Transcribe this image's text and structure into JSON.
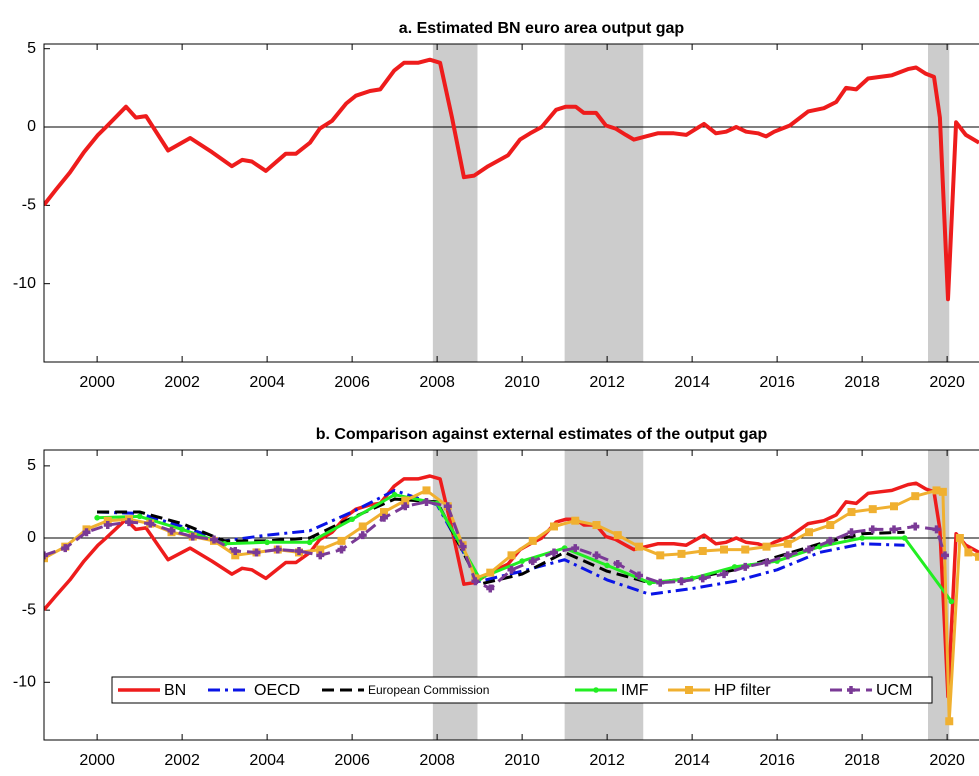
{
  "chart_data": [
    {
      "type": "line",
      "title": "a.  Estimated BN euro area output gap",
      "xlim": [
        1998.75,
        2020.75
      ],
      "ylim": [
        -15,
        5.3
      ],
      "xticks": [
        2000,
        2002,
        2004,
        2006,
        2008,
        2010,
        2012,
        2014,
        2016,
        2018,
        2020
      ],
      "yticks": [
        -10,
        -5,
        0,
        5
      ],
      "zero_line": true,
      "shade_color": "#cccccc",
      "shaded_periods": [
        [
          2007.9,
          2008.95
        ],
        [
          2011.0,
          2012.85
        ],
        [
          2019.55,
          2020.05
        ]
      ],
      "series": [
        {
          "name": "BN",
          "color": "#ee1c1c",
          "width": 4,
          "dash": "solid",
          "x": [
            1998.75,
            1999.03,
            1999.36,
            1999.69,
            2000.02,
            2000.21,
            2000.68,
            2000.91,
            2001.15,
            2001.67,
            2002.19,
            2002.7,
            2003.17,
            2003.41,
            2003.64,
            2003.97,
            2004.44,
            2004.68,
            2005.01,
            2005.24,
            2005.53,
            2005.86,
            2006.09,
            2006.42,
            2006.66,
            2006.99,
            2007.22,
            2007.55,
            2007.83,
            2008.07,
            2008.35,
            2008.63,
            2008.87,
            2009.2,
            2009.67,
            2009.95,
            2010.19,
            2010.46,
            2010.8,
            2011.03,
            2011.26,
            2011.45,
            2011.74,
            2011.97,
            2012.2,
            2012.44,
            2012.63,
            2012.91,
            2013.19,
            2013.57,
            2013.86,
            2014.28,
            2014.56,
            2014.8,
            2015.04,
            2015.27,
            2015.55,
            2015.74,
            2015.93,
            2016.3,
            2016.73,
            2017.1,
            2017.39,
            2017.62,
            2017.86,
            2018.14,
            2018.42,
            2018.7,
            2019.08,
            2019.27,
            2019.5,
            2019.69,
            2019.83,
            2020.02,
            2020.21,
            2020.44,
            2020.75
          ],
          "values": [
            -4.97,
            -4,
            -2.9,
            -1.6,
            -0.5,
            0,
            1.3,
            0.6,
            0.7,
            -1.5,
            -0.7,
            -1.6,
            -2.5,
            -2.1,
            -2.2,
            -2.8,
            -1.7,
            -1.7,
            -1,
            -0.1,
            0.4,
            1.5,
            2,
            2.3,
            2.4,
            3.6,
            4.1,
            4.1,
            4.3,
            4.1,
            0.6,
            -3.2,
            -3.1,
            -2.5,
            -1.8,
            -0.8,
            -0.4,
            0,
            1.1,
            1.3,
            1.3,
            0.9,
            0.9,
            0.1,
            -0.1,
            -0.5,
            -0.8,
            -0.6,
            -0.4,
            -0.4,
            -0.5,
            0.2,
            -0.4,
            -0.3,
            0,
            -0.3,
            -0.4,
            -0.6,
            -0.3,
            0.1,
            1,
            1.2,
            1.6,
            2.5,
            2.4,
            3.1,
            3.2,
            3.3,
            3.7,
            3.8,
            3.4,
            3.2,
            0.6,
            -11,
            0.3,
            -0.5,
            -1
          ]
        }
      ]
    },
    {
      "type": "line",
      "title": "b. Comparison against external estimates of the output gap",
      "xlim": [
        1998.75,
        2020.75
      ],
      "ylim": [
        -14,
        6.1
      ],
      "xticks": [
        2000,
        2002,
        2004,
        2006,
        2008,
        2010,
        2012,
        2014,
        2016,
        2018,
        2020
      ],
      "yticks": [
        -10,
        -5,
        0,
        5
      ],
      "zero_line": true,
      "shade_color": "#cccccc",
      "shaded_periods": [
        [
          2007.9,
          2008.95
        ],
        [
          2011.0,
          2012.85
        ],
        [
          2019.55,
          2020.05
        ]
      ],
      "legend": "lower center",
      "series": [
        {
          "name": "BN",
          "color": "#ee1c1c",
          "width": 3.5,
          "dash": "solid",
          "x": [
            1998.75,
            1999.03,
            1999.36,
            1999.69,
            2000.02,
            2000.21,
            2000.68,
            2000.91,
            2001.15,
            2001.67,
            2002.19,
            2002.7,
            2003.17,
            2003.41,
            2003.64,
            2003.97,
            2004.44,
            2004.68,
            2005.01,
            2005.24,
            2005.53,
            2005.86,
            2006.09,
            2006.42,
            2006.66,
            2006.99,
            2007.22,
            2007.55,
            2007.83,
            2008.07,
            2008.35,
            2008.63,
            2008.87,
            2009.2,
            2009.67,
            2009.95,
            2010.19,
            2010.46,
            2010.8,
            2011.03,
            2011.26,
            2011.45,
            2011.74,
            2011.97,
            2012.2,
            2012.44,
            2012.63,
            2012.91,
            2013.19,
            2013.57,
            2013.86,
            2014.28,
            2014.56,
            2014.8,
            2015.04,
            2015.27,
            2015.55,
            2015.74,
            2015.93,
            2016.3,
            2016.73,
            2017.1,
            2017.39,
            2017.62,
            2017.86,
            2018.14,
            2018.42,
            2018.7,
            2019.08,
            2019.27,
            2019.5,
            2019.69,
            2019.83,
            2020.02,
            2020.21,
            2020.44,
            2020.75
          ],
          "values": [
            -4.97,
            -4,
            -2.9,
            -1.6,
            -0.5,
            0,
            1.3,
            0.6,
            0.7,
            -1.5,
            -0.7,
            -1.6,
            -2.5,
            -2.1,
            -2.2,
            -2.8,
            -1.7,
            -1.7,
            -1,
            -0.1,
            0.4,
            1.5,
            2,
            2.3,
            2.4,
            3.6,
            4.1,
            4.1,
            4.3,
            4.1,
            0.6,
            -3.2,
            -3.1,
            -2.5,
            -1.8,
            -0.8,
            -0.4,
            0,
            1.1,
            1.3,
            1.3,
            0.9,
            0.9,
            0.1,
            -0.1,
            -0.5,
            -0.8,
            -0.6,
            -0.4,
            -0.4,
            -0.5,
            0.2,
            -0.4,
            -0.3,
            0,
            -0.3,
            -0.4,
            -0.6,
            -0.3,
            0.1,
            1,
            1.2,
            1.6,
            2.5,
            2.4,
            3.1,
            3.2,
            3.3,
            3.7,
            3.8,
            3.4,
            3.2,
            0.6,
            -11,
            0.3,
            -0.5,
            -1
          ]
        },
        {
          "name": "OECD",
          "color": "#0a14e6",
          "width": 3,
          "dash": "dash-dot",
          "x": [
            2000,
            2001,
            2002,
            2003,
            2004,
            2005,
            2006,
            2007,
            2008,
            2009,
            2010,
            2011,
            2012,
            2013,
            2014,
            2015,
            2016,
            2017,
            2018,
            2019
          ],
          "values": [
            1.8,
            1.7,
            0.8,
            -0.2,
            0.2,
            0.5,
            1.8,
            3.3,
            2.3,
            -3,
            -2.3,
            -1.5,
            -2.9,
            -3.9,
            -3.5,
            -3,
            -2.2,
            -1,
            -0.4,
            -0.5
          ]
        },
        {
          "name": "European Commission",
          "color": "#000000",
          "width": 3,
          "dash": "dash",
          "x": [
            2000,
            2001,
            2002,
            2003,
            2004,
            2005,
            2006,
            2007,
            2008,
            2009,
            2010,
            2011,
            2012,
            2013,
            2014,
            2015,
            2016,
            2017,
            2018,
            2019
          ],
          "values": [
            1.8,
            1.8,
            1,
            -0.2,
            -0.2,
            0,
            1.4,
            2.7,
            2.5,
            -3.2,
            -2.5,
            -1,
            -2.3,
            -3.1,
            -2.8,
            -2.2,
            -1.3,
            -0.4,
            0.3,
            0.4
          ]
        },
        {
          "name": "IMF",
          "color": "#22ee22",
          "width": 3,
          "dash": "solid",
          "marker": "dot",
          "x": [
            2000,
            2001,
            2002,
            2003,
            2004,
            2005,
            2006,
            2007,
            2008,
            2009,
            2010,
            2011,
            2012,
            2013,
            2014,
            2015,
            2016,
            2017,
            2018,
            2019,
            2020.1
          ],
          "values": [
            1.4,
            1.5,
            0.6,
            -0.4,
            -0.3,
            -0.3,
            1.3,
            3,
            2.4,
            -2.8,
            -1.6,
            -0.7,
            -1.9,
            -3.1,
            -2.8,
            -2,
            -1.6,
            -0.6,
            0,
            0,
            -4.4
          ]
        },
        {
          "name": "HP filter",
          "color": "#f0b030",
          "width": 3,
          "dash": "solid",
          "marker": "square",
          "x": [
            1998.75,
            1999.25,
            1999.75,
            2000.25,
            2000.75,
            2001.25,
            2001.75,
            2002.25,
            2002.75,
            2003.25,
            2003.75,
            2004.25,
            2004.75,
            2005.25,
            2005.75,
            2006.25,
            2006.75,
            2007.25,
            2007.75,
            2008.25,
            2008.6,
            2008.9,
            2009.25,
            2009.75,
            2010.25,
            2010.75,
            2011.25,
            2011.75,
            2012.25,
            2012.75,
            2013.25,
            2013.75,
            2014.25,
            2014.75,
            2015.25,
            2015.75,
            2016.25,
            2016.75,
            2017.25,
            2017.75,
            2018.25,
            2018.75,
            2019.25,
            2019.75,
            2019.9,
            2020.05,
            2020.3,
            2020.5,
            2020.75
          ],
          "values": [
            -1.4,
            -0.6,
            0.6,
            1.2,
            1.3,
            1,
            0.4,
            0.1,
            -0.2,
            -1.2,
            -1,
            -0.8,
            -1,
            -0.8,
            -0.2,
            0.8,
            1.8,
            2.6,
            3.3,
            2.2,
            -0.5,
            -2.8,
            -2.4,
            -1.2,
            -0.2,
            0.8,
            1.2,
            0.9,
            0.2,
            -0.6,
            -1.2,
            -1.1,
            -0.9,
            -0.8,
            -0.8,
            -0.6,
            -0.4,
            0.4,
            0.9,
            1.8,
            2,
            2.2,
            2.9,
            3.3,
            3.2,
            -12.7,
            0,
            -1,
            -1.3
          ]
        },
        {
          "name": "UCM",
          "color": "#7a3a96",
          "width": 3,
          "dash": "dash",
          "marker": "plus",
          "x": [
            1998.75,
            1999.25,
            1999.75,
            2000.25,
            2000.75,
            2001.25,
            2001.75,
            2002.25,
            2002.75,
            2003.25,
            2003.75,
            2004.25,
            2004.75,
            2005.25,
            2005.75,
            2006.25,
            2006.75,
            2007.25,
            2007.75,
            2008.25,
            2008.6,
            2008.9,
            2009.25,
            2009.75,
            2010.25,
            2010.75,
            2011.25,
            2011.75,
            2012.25,
            2012.75,
            2013.25,
            2013.75,
            2014.25,
            2014.75,
            2015.25,
            2015.75,
            2016.25,
            2016.75,
            2017.25,
            2017.75,
            2018.25,
            2018.75,
            2019.25,
            2019.75,
            2019.95
          ],
          "values": [
            -1.2,
            -0.7,
            0.4,
            0.9,
            1.1,
            1,
            0.5,
            0.1,
            -0.1,
            -0.9,
            -1,
            -0.8,
            -0.9,
            -1.2,
            -0.8,
            0.2,
            1.4,
            2.2,
            2.5,
            2.2,
            -0.6,
            -3,
            -3.5,
            -2.2,
            -1.6,
            -1,
            -0.7,
            -1.2,
            -1.8,
            -2.6,
            -3.1,
            -3,
            -2.8,
            -2.5,
            -2,
            -1.7,
            -1.2,
            -0.8,
            -0.2,
            0.4,
            0.6,
            0.6,
            0.8,
            0.6,
            -1.2
          ]
        }
      ]
    }
  ]
}
